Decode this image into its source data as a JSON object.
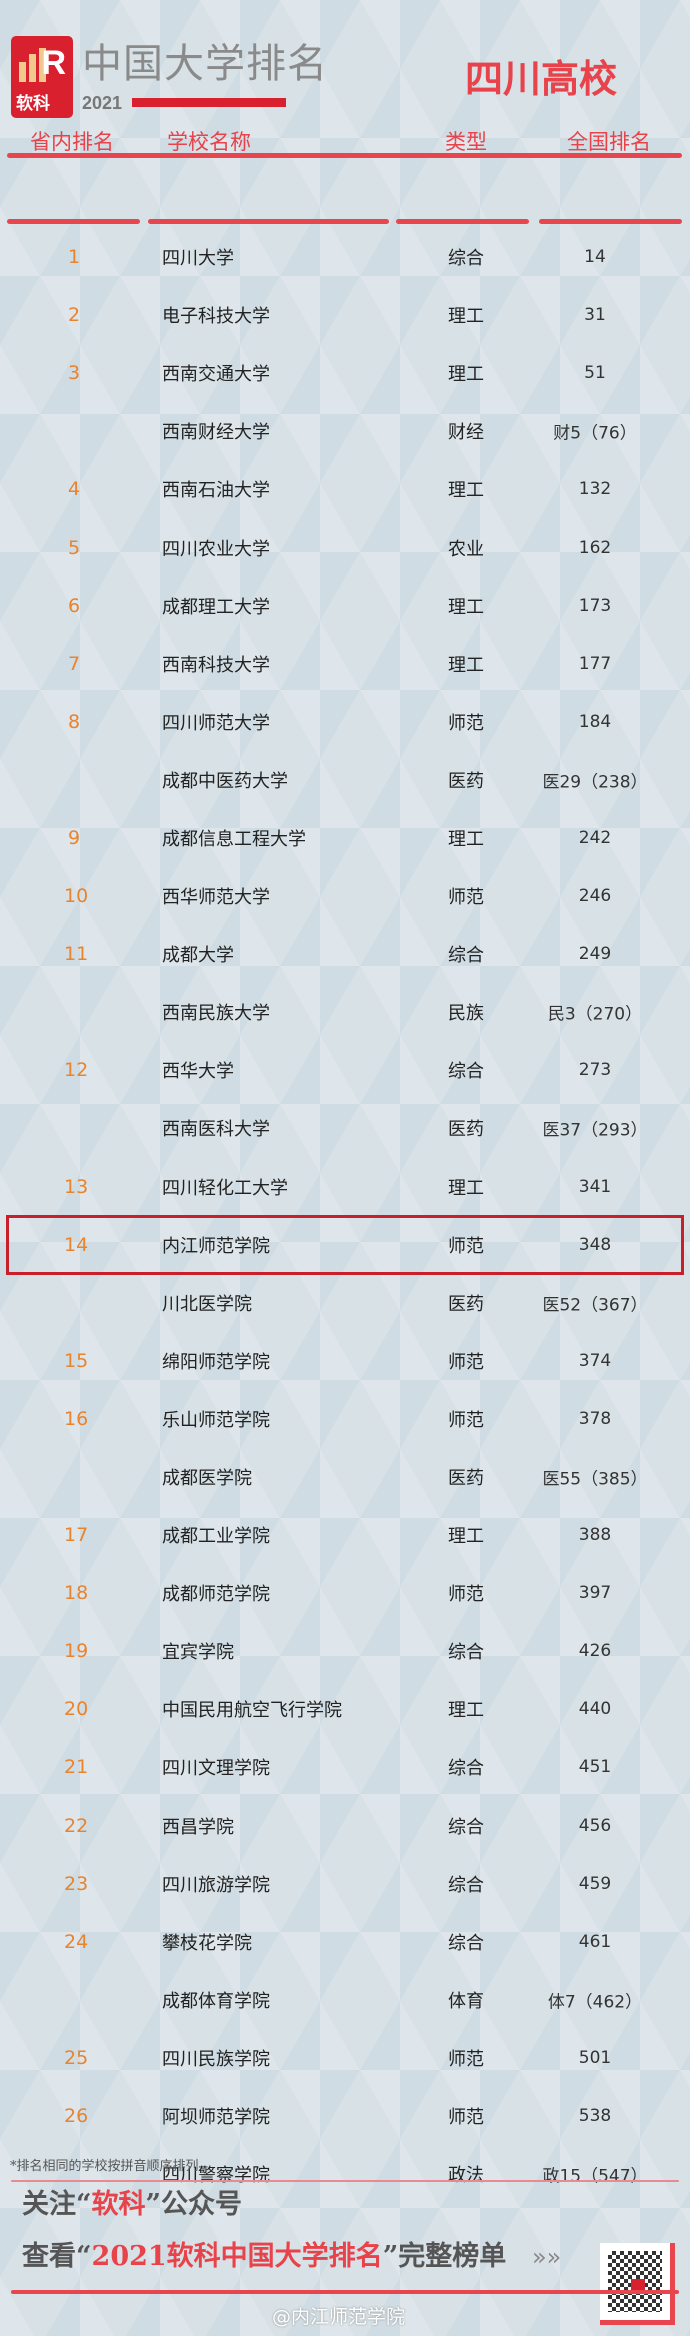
{
  "header": {
    "logo_text": "软科",
    "brand": "中国大学排名",
    "year": "2021",
    "province": "四川高校"
  },
  "columns": [
    "省内排名",
    "学校名称",
    "类型",
    "全国排名"
  ],
  "rows": [
    {
      "rank": "1",
      "name": "四川大学",
      "type": "综合",
      "national": "14"
    },
    {
      "rank": "2",
      "name": "电子科技大学",
      "type": "理工",
      "national": "31"
    },
    {
      "rank": "3",
      "name": "西南交通大学",
      "type": "理工",
      "national": "51"
    },
    {
      "rank": "",
      "name": "西南财经大学",
      "type": "财经",
      "national": "财5（76）"
    },
    {
      "rank": "4",
      "name": "西南石油大学",
      "type": "理工",
      "national": "132"
    },
    {
      "rank": "5",
      "name": "四川农业大学",
      "type": "农业",
      "national": "162"
    },
    {
      "rank": "6",
      "name": "成都理工大学",
      "type": "理工",
      "national": "173"
    },
    {
      "rank": "7",
      "name": "西南科技大学",
      "type": "理工",
      "national": "177"
    },
    {
      "rank": "8",
      "name": "四川师范大学",
      "type": "师范",
      "national": "184"
    },
    {
      "rank": "",
      "name": "成都中医药大学",
      "type": "医药",
      "national": "医29（238）"
    },
    {
      "rank": "9",
      "name": "成都信息工程大学",
      "type": "理工",
      "national": "242"
    },
    {
      "rank": "10",
      "name": "西华师范大学",
      "type": "师范",
      "national": "246"
    },
    {
      "rank": "11",
      "name": "成都大学",
      "type": "综合",
      "national": "249"
    },
    {
      "rank": "",
      "name": "西南民族大学",
      "type": "民族",
      "national": "民3（270）"
    },
    {
      "rank": "12",
      "name": "西华大学",
      "type": "综合",
      "national": "273"
    },
    {
      "rank": "",
      "name": "西南医科大学",
      "type": "医药",
      "national": "医37（293）"
    },
    {
      "rank": "13",
      "name": "四川轻化工大学",
      "type": "理工",
      "national": "341"
    },
    {
      "rank": "14",
      "name": "内江师范学院",
      "type": "师范",
      "national": "348",
      "highlighted": true
    },
    {
      "rank": "",
      "name": "川北医学院",
      "type": "医药",
      "national": "医52（367）"
    },
    {
      "rank": "15",
      "name": "绵阳师范学院",
      "type": "师范",
      "national": "374"
    },
    {
      "rank": "16",
      "name": "乐山师范学院",
      "type": "师范",
      "national": "378"
    },
    {
      "rank": "",
      "name": "成都医学院",
      "type": "医药",
      "national": "医55（385）"
    },
    {
      "rank": "17",
      "name": "成都工业学院",
      "type": "理工",
      "national": "388"
    },
    {
      "rank": "18",
      "name": "成都师范学院",
      "type": "师范",
      "national": "397"
    },
    {
      "rank": "19",
      "name": "宜宾学院",
      "type": "综合",
      "national": "426"
    },
    {
      "rank": "20",
      "name": "中国民用航空飞行学院",
      "type": "理工",
      "national": "440"
    },
    {
      "rank": "21",
      "name": "四川文理学院",
      "type": "综合",
      "national": "451"
    },
    {
      "rank": "22",
      "name": "西昌学院",
      "type": "综合",
      "national": "456"
    },
    {
      "rank": "23",
      "name": "四川旅游学院",
      "type": "综合",
      "national": "459"
    },
    {
      "rank": "24",
      "name": "攀枝花学院",
      "type": "综合",
      "national": "461"
    },
    {
      "rank": "",
      "name": "成都体育学院",
      "type": "体育",
      "national": "体7（462）"
    },
    {
      "rank": "25",
      "name": "四川民族学院",
      "type": "师范",
      "national": "501"
    },
    {
      "rank": "26",
      "name": "阿坝师范学院",
      "type": "师范",
      "national": "538"
    },
    {
      "rank": "",
      "name": "四川警察学院",
      "type": "政法",
      "national": "政15（547）"
    }
  ],
  "footer": {
    "note": "*排名相同的学校按拼音顺序排列",
    "line1_a": "关注“",
    "line1_b": "软科",
    "line1_c": "”公众号",
    "line2_a": "查看“",
    "line2_b": "2021软科中国大学排名",
    "line2_c": "”完整榜单",
    "arrow": "»»",
    "watermark": "@内江师范学院"
  },
  "colors": {
    "accent": "#e8424b",
    "brand_red": "#d8202e",
    "rank_orange": "#e8832e",
    "background": "#d7e1e6"
  }
}
